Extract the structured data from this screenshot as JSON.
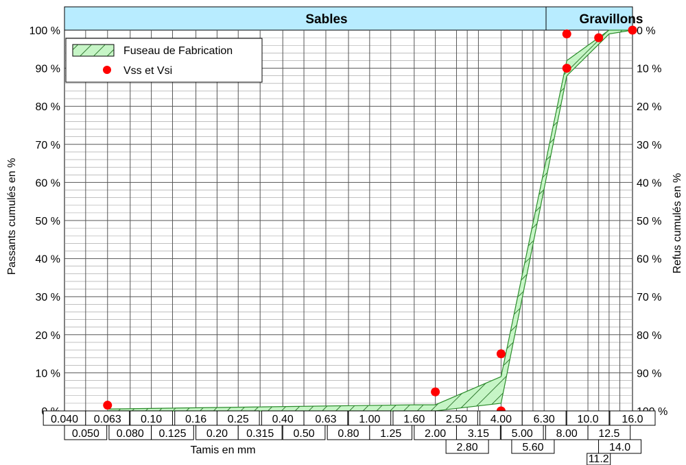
{
  "chart_data": {
    "type": "line",
    "bands": [
      {
        "label": "Sables",
        "from": "0.040",
        "to": "6.30"
      },
      {
        "label": "Gravillons",
        "from": "6.30",
        "to": "16.0"
      }
    ],
    "sieves_row1": [
      "0.040",
      "0.063",
      "0.10",
      "0.16",
      "0.25",
      "0.40",
      "0.63",
      "1.00",
      "1.60",
      "2.50",
      "4.00",
      "6.30",
      "10.0",
      "16.0"
    ],
    "sieves_row2": [
      "0.050",
      "0.080",
      "0.125",
      "0.20",
      "0.315",
      "0.50",
      "0.80",
      "1.25",
      "2.00",
      "3.15",
      "5.00",
      "8.00",
      "12.5"
    ],
    "sieves_row3": [
      "2.80",
      "5.60",
      "14.0"
    ],
    "sieves_row4": [
      "11.2"
    ],
    "y_left_ticks": [
      "0 %",
      "10 %",
      "20 %",
      "30 %",
      "40 %",
      "50 %",
      "60 %",
      "70 %",
      "80 %",
      "90 %",
      "100 %"
    ],
    "y_right_ticks": [
      "100 %",
      "90 %",
      "80 %",
      "70 %",
      "60 %",
      "50 %",
      "40 %",
      "30 %",
      "20 %",
      "10 %",
      "0 %"
    ],
    "ylabel_left": "Passants cumulés en %",
    "ylabel_right": "Refus cumulés en %",
    "xlabel": "Tamis en mm",
    "ylim": [
      0,
      100
    ],
    "legend": {
      "position": "top-left",
      "entries": [
        "Fuseau de Fabrication",
        "Vss et Vsi"
      ]
    },
    "series": [
      {
        "name": "Fuseau de Fabrication",
        "upper": [
          [
            0.063,
            0.5
          ],
          [
            1.6,
            1.6
          ],
          [
            2.0,
            1.6
          ],
          [
            4.0,
            9
          ],
          [
            8.0,
            92
          ],
          [
            12.5,
            100
          ],
          [
            16.0,
            100
          ]
        ],
        "lower": [
          [
            0.063,
            0
          ],
          [
            1.6,
            0
          ],
          [
            2.0,
            0
          ],
          [
            4.0,
            2
          ],
          [
            8.0,
            88
          ],
          [
            12.5,
            99
          ],
          [
            16.0,
            100
          ]
        ]
      },
      {
        "name": "Vss et Vsi",
        "points": [
          [
            0.063,
            1.5
          ],
          [
            2.0,
            5
          ],
          [
            4.0,
            0
          ],
          [
            4.0,
            15
          ],
          [
            8.0,
            90
          ],
          [
            8.0,
            99
          ],
          [
            11.2,
            98
          ],
          [
            16.0,
            100
          ]
        ]
      }
    ],
    "colors": {
      "band_fill": "#c6f5c6",
      "band_stroke": "#2a8c2a",
      "hatch": "#0e5c0e",
      "point": "#ff0000",
      "header_bg": "#b8ecff",
      "grid": "#666666"
    }
  }
}
